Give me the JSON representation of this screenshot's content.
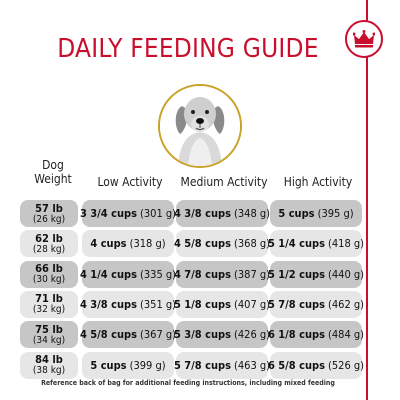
{
  "title": "DAILY FEEDING GUIDE",
  "brand": {
    "accent_color": "#c8102e",
    "icon": "crown-icon"
  },
  "dog_photo": {
    "icon": "golden-retriever-photo",
    "ring_color": "#c9a227"
  },
  "table": {
    "headers": {
      "weight": "Dog\nWeight",
      "low": "Low Activity",
      "medium": "Medium Activity",
      "high": "High Activity"
    },
    "rows": [
      {
        "lb": "57 lb",
        "kg": "(26 kg)",
        "low": "3 3/4 cups",
        "low_g": "(301 g)",
        "medium": "4 3/8 cups",
        "medium_g": "(348 g)",
        "high": "5 cups",
        "high_g": "(395 g)"
      },
      {
        "lb": "62 lb",
        "kg": "(28 kg)",
        "low": "4 cups",
        "low_g": "(318 g)",
        "medium": "4 5/8 cups",
        "medium_g": "(368 g)",
        "high": "5 1/4 cups",
        "high_g": "(418 g)"
      },
      {
        "lb": "66 lb",
        "kg": "(30 kg)",
        "low": "4 1/4 cups",
        "low_g": "(335 g)",
        "medium": "4 7/8 cups",
        "medium_g": "(387 g)",
        "high": "5 1/2 cups",
        "high_g": "(440 g)"
      },
      {
        "lb": "71 lb",
        "kg": "(32 kg)",
        "low": "4 3/8 cups",
        "low_g": "(351 g)",
        "medium": "5 1/8 cups",
        "medium_g": "(407 g)",
        "high": "5 7/8 cups",
        "high_g": "(462 g)"
      },
      {
        "lb": "75 lb",
        "kg": "(34 kg)",
        "low": "4 5/8 cups",
        "low_g": "(367 g)",
        "medium": "5 3/8 cups",
        "medium_g": "(426 g)",
        "high": "6 1/8 cups",
        "high_g": "(484 g)"
      },
      {
        "lb": "84 lb",
        "kg": "(38 kg)",
        "low": "5 cups",
        "low_g": "(399 g)",
        "medium": "5 7/8 cups",
        "medium_g": "(463 g)",
        "high": "6 5/8 cups",
        "high_g": "(526 g)"
      }
    ],
    "shade_dark": "#c6c6c6",
    "shade_light": "#e6e6e6"
  },
  "footer": "Reference back of bag for additional feeding instructions, including mixed feeding"
}
